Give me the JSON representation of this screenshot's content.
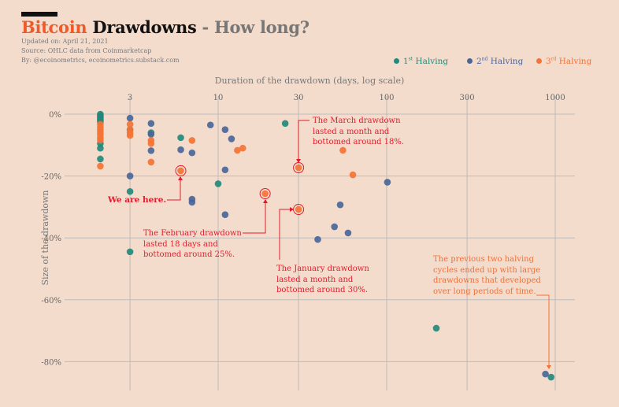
{
  "header": {
    "title_part1": "Bitcoin",
    "title_part2": "Drawdowns",
    "title_part3": "- How long?",
    "updated": "Updated on: April 21, 2021",
    "source": "Source: OHLC data from Coinmarketcap",
    "byline": "By: @ecoinometrics, ecoinometrics.substack.com"
  },
  "legend": [
    {
      "num": "1",
      "sup": "st",
      "label": " Halving",
      "color": "#23897a"
    },
    {
      "num": "2",
      "sup": "nd",
      "label": " Halving",
      "color": "#4a6699"
    },
    {
      "num": "3",
      "sup": "rd",
      "label": " Halving",
      "color": "#f47335"
    }
  ],
  "annotations": {
    "we_are_here": "We are here.",
    "march": [
      "The March drawdown",
      "lasted a month and",
      "bottomed around 18%."
    ],
    "february": [
      "The February drawdown",
      "lasted 18 days and",
      "bottomed around 25%."
    ],
    "january": [
      "The January drawdown",
      "lasted a month and",
      "bottomed around 30%."
    ],
    "previous": [
      "The previous two halving",
      "cycles ended up with large",
      "drawdowns that developed",
      "over long periods of time."
    ]
  },
  "chart_data": {
    "type": "scatter",
    "title": "Bitcoin Drawdowns - How long?",
    "xlabel": "Duration of the drawdown (days, log scale)",
    "ylabel": "Size of the drawdown",
    "xscale": "log",
    "xlim": [
      1.6,
      1300
    ],
    "ylim": [
      -90,
      2
    ],
    "xticks": [
      3,
      10,
      30,
      100,
      300,
      1000
    ],
    "xtick_labels": [
      "3",
      "10",
      "30",
      "100",
      "300",
      "1000"
    ],
    "yticks": [
      0,
      -20,
      -40,
      -60,
      -80
    ],
    "ytick_labels": [
      "0%",
      "-20%",
      "-40%",
      "-60%",
      "-80%"
    ],
    "grid": true,
    "legend_position": "top-right",
    "series": [
      {
        "name": "1st Halving",
        "color": "#23897a",
        "points": [
          [
            2,
            0
          ],
          [
            2,
            -0.5
          ],
          [
            2,
            -1
          ],
          [
            2,
            -1.5
          ],
          [
            2,
            -2
          ],
          [
            2,
            -2.5
          ],
          [
            2,
            -9.5
          ],
          [
            2,
            -11
          ],
          [
            2,
            -14.5
          ],
          [
            3,
            -5
          ],
          [
            3,
            -25
          ],
          [
            3,
            -44.5
          ],
          [
            4,
            -6
          ],
          [
            6,
            -7.6
          ],
          [
            10,
            -22.5
          ],
          [
            25,
            -3
          ],
          [
            197,
            -69.2
          ],
          [
            945,
            -85
          ]
        ]
      },
      {
        "name": "2nd Halving",
        "color": "#4a6699",
        "points": [
          [
            3,
            -1.3
          ],
          [
            3,
            -20
          ],
          [
            4,
            -3
          ],
          [
            4,
            -6.5
          ],
          [
            4,
            -11.8
          ],
          [
            6,
            -11.5
          ],
          [
            7,
            -12.5
          ],
          [
            7,
            -27.5
          ],
          [
            7,
            -28.5
          ],
          [
            9,
            -3.5
          ],
          [
            11,
            -5
          ],
          [
            11,
            -18
          ],
          [
            11,
            -32.5
          ],
          [
            12,
            -8
          ],
          [
            39,
            -40.5
          ],
          [
            49,
            -36.4
          ],
          [
            53,
            -29.3
          ],
          [
            59,
            -38.4
          ],
          [
            101,
            -22
          ],
          [
            875,
            -84
          ]
        ]
      },
      {
        "name": "3rd Halving",
        "color": "#f47335",
        "points": [
          [
            2,
            -3.3
          ],
          [
            2,
            -4.3
          ],
          [
            2,
            -5
          ],
          [
            2,
            -5.8
          ],
          [
            2,
            -6.6
          ],
          [
            2,
            -7.6
          ],
          [
            2,
            -8.4
          ],
          [
            2,
            -16.8
          ],
          [
            3,
            -3.3
          ],
          [
            3,
            -5.1
          ],
          [
            3,
            -6.1
          ],
          [
            3,
            -6.9
          ],
          [
            4,
            -8.5
          ],
          [
            4,
            -9.5
          ],
          [
            4,
            -15.5
          ],
          [
            6,
            -18.3
          ],
          [
            7,
            -8.5
          ],
          [
            13,
            -11.7
          ],
          [
            14,
            -11
          ],
          [
            19,
            -25.7
          ],
          [
            30,
            -17.3
          ],
          [
            30,
            -30.8
          ],
          [
            55,
            -11.7
          ],
          [
            63,
            -19.6
          ]
        ],
        "highlighted": [
          [
            6,
            -18.3
          ],
          [
            19,
            -25.7
          ],
          [
            30,
            -17.3
          ],
          [
            30,
            -30.8
          ]
        ]
      }
    ]
  }
}
